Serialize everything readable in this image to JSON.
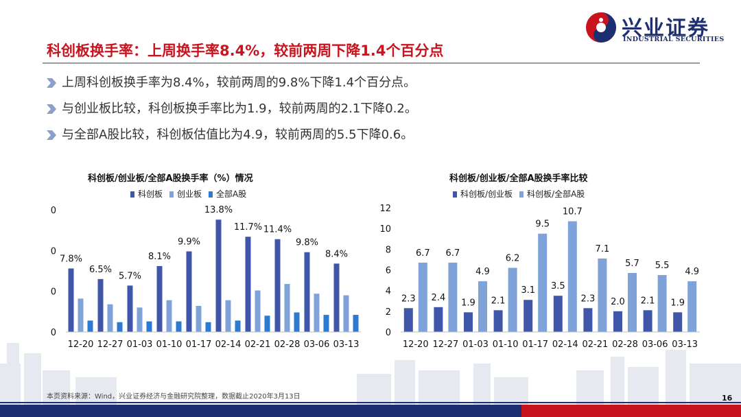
{
  "brand": {
    "name_cn": "兴业证券",
    "name_en": "INDUSTRIAL SECURITIES",
    "red": "#c8141e",
    "navy": "#1d2f70"
  },
  "title": "科创板换手率：上周换手率8.4%，较前两周下降1.4个百分点",
  "bullets": [
    "上周科创板换手率为8.4%，较前两周的9.8%下降1.4个百分点。",
    "与创业板比较，科创板换手率比为1.9，较前两周的2.1下降0.2。",
    "与全部A股比较，科创板估值比为4.9，较前两周的5.5下降0.6。"
  ],
  "chart_data": [
    {
      "type": "bar",
      "title": "科创板/创业板/全部A股换手率（%）情况",
      "categories": [
        "12-20",
        "12-27",
        "01-03",
        "01-10",
        "01-17",
        "02-14",
        "02-21",
        "02-28",
        "03-06",
        "03-13"
      ],
      "series": [
        {
          "name": "科创板",
          "color": "#4056a8",
          "values": [
            7.8,
            6.5,
            5.7,
            8.1,
            9.9,
            13.8,
            11.7,
            11.4,
            9.8,
            8.4
          ],
          "labels": [
            "7.8%",
            "6.5%",
            "5.7%",
            "8.1%",
            "9.9%",
            "13.8%",
            "11.7%",
            "11.4%",
            "9.8%",
            "8.4%"
          ]
        },
        {
          "name": "创业板",
          "color": "#7fa3d8",
          "values": [
            4.1,
            3.4,
            3.0,
            3.9,
            3.2,
            3.9,
            5.1,
            5.9,
            4.7,
            4.5
          ]
        },
        {
          "name": "全部A股",
          "color": "#2c7bd0",
          "values": [
            1.4,
            1.2,
            1.3,
            1.3,
            1.2,
            1.4,
            2.0,
            2.4,
            2.1,
            2.1
          ]
        }
      ],
      "yticks": [
        "0",
        "0",
        "0",
        "0"
      ],
      "ylim": [
        0,
        15
      ],
      "legend_position": "top"
    },
    {
      "type": "bar",
      "title": "科创板/创业板/全部A股换手率比较",
      "categories": [
        "12-20",
        "12-27",
        "01-03",
        "01-10",
        "01-17",
        "02-14",
        "02-21",
        "02-28",
        "03-06",
        "03-13"
      ],
      "series": [
        {
          "name": "科创板/创业板",
          "color": "#4056a8",
          "values": [
            2.3,
            2.4,
            1.9,
            2.1,
            3.1,
            3.5,
            2.3,
            2.0,
            2.1,
            1.9
          ],
          "labels": [
            "2.3",
            "2.4",
            "1.9",
            "2.1",
            "3.1",
            "3.5",
            "2.3",
            "2.0",
            "2.1",
            "1.9"
          ]
        },
        {
          "name": "科创板/全部A股",
          "color": "#7fa3d8",
          "values": [
            6.7,
            6.7,
            4.9,
            6.2,
            9.5,
            10.7,
            7.1,
            5.7,
            5.5,
            4.9
          ],
          "labels": [
            "6.7",
            "6.7",
            "4.9",
            "6.2",
            "9.5",
            "10.7",
            "7.1",
            "5.7",
            "5.5",
            "4.9"
          ]
        }
      ],
      "yticks": [
        "0",
        "2",
        "4",
        "6",
        "8",
        "10",
        "12"
      ],
      "ylim": [
        0,
        12
      ],
      "legend_position": "top"
    }
  ],
  "footer": {
    "note": "本页资料来源：Wind，兴业证券经济与金融研究院整理，数据截止2020年3月13日",
    "page": "16"
  }
}
